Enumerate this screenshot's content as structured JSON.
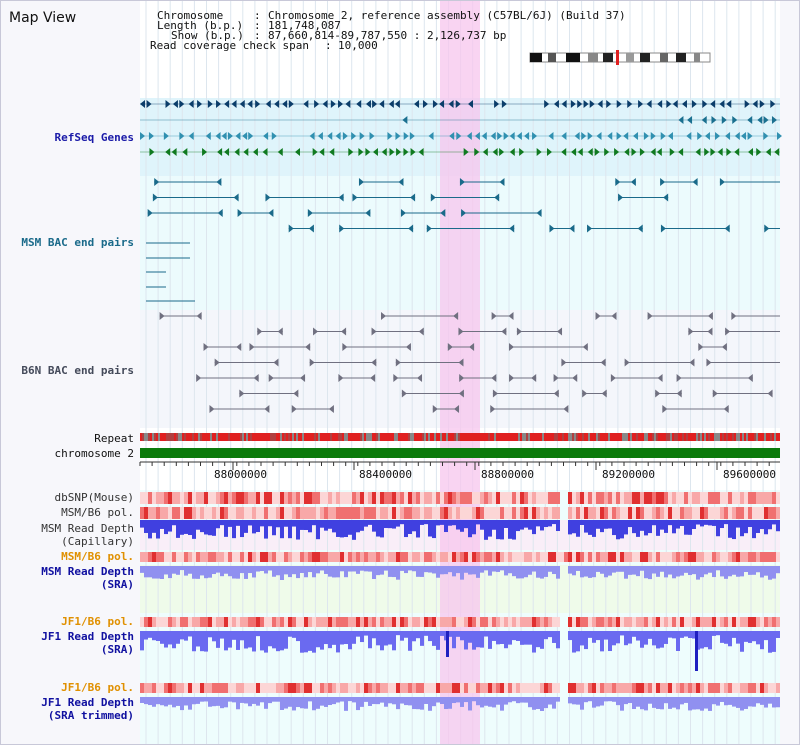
{
  "panel_title": "Map View",
  "info": {
    "chromosome_label": "Chromosome",
    "chromosome_value": "Chromosome 2, reference assembly (C57BL/6J) (Build 37)",
    "length_label": "Length (b.p.)",
    "length_value": "181,748,087",
    "show_label": "Show (b.p.)",
    "show_value": "87,660,814-89,787,550 : 2,126,737 bp",
    "coverage_label": "Read coverage check span",
    "coverage_value": "10,000"
  },
  "tracks": {
    "refseq": "RefSeq Genes",
    "msm_bac": "MSM BAC end pairs",
    "b6n_bac": "B6N BAC end pairs",
    "repeat": "Repeat",
    "chromosome": "chromosome 2",
    "dbsnp": "dbSNP(Mouse)",
    "msm_b6_pol_1": "MSM/B6 pol.",
    "msm_read_depth_cap_1": "MSM Read Depth",
    "msm_read_depth_cap_2": "(Capillary)",
    "msm_b6_pol_2": "MSM/B6 pol.",
    "msm_read_depth_sra_1": "MSM Read Depth",
    "msm_read_depth_sra_2": "(SRA)",
    "jf1_b6_pol_1": "JF1/B6 pol.",
    "jf1_read_depth_1": "JF1 Read Depth",
    "jf1_read_depth_2": "(SRA)",
    "jf1_b6_pol_2": "JF1/B6 pol.",
    "jf1_trim_1": "JF1 Read Depth",
    "jf1_trim_2": "(SRA trimmed)"
  },
  "ruler": {
    "ticks": [
      "88000000",
      "88400000",
      "88800000",
      "89200000",
      "89600000"
    ]
  },
  "colors": {
    "refseq_bg": "#dff4fb",
    "msm_bac_bg": "#ecfbfd",
    "b6n_bg": "#f4f6fb",
    "highlight": "#f7c6ee",
    "chromosome_bar": "#0b7a0b",
    "repeat_red": "#e02020",
    "depth_blue": "#6a6af0",
    "refseq_label": "#1a1aa8",
    "bac_label": "#1a6a8a",
    "orange_label": "#e09000",
    "navy_label": "#1010a0"
  }
}
